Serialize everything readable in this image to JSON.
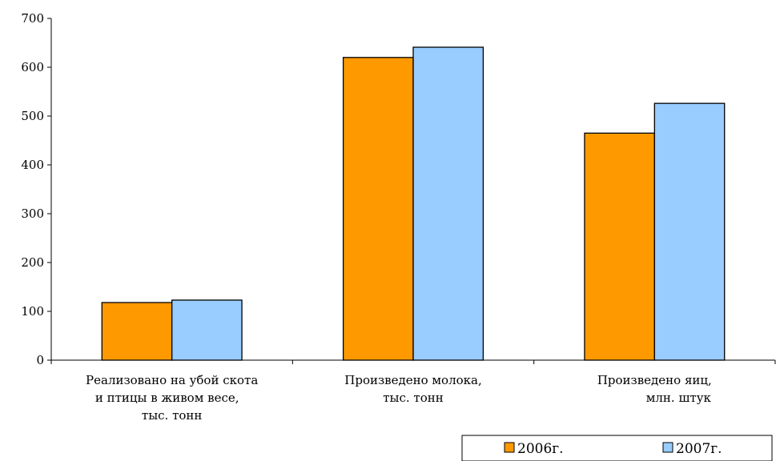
{
  "chart_data": {
    "type": "bar",
    "categories": [
      [
        "Реализовано на убой скота",
        "и птицы в живом весе,",
        "тыс. тонн"
      ],
      [
        "Произведено молока,",
        "тыс. тонн"
      ],
      [
        "Произведено яиц,",
        "млн. штук"
      ]
    ],
    "series": [
      {
        "name": "2006г.",
        "color": "#FF9900",
        "values": [
          118,
          620,
          465
        ]
      },
      {
        "name": "2007г.",
        "color": "#99CCFF",
        "values": [
          123,
          641,
          526
        ]
      }
    ],
    "ylim": [
      0,
      700
    ],
    "yticks": [
      "0",
      "100",
      "200",
      "300",
      "400",
      "500",
      "600",
      "700"
    ],
    "grid": false,
    "legend_position": "bottom-right"
  }
}
